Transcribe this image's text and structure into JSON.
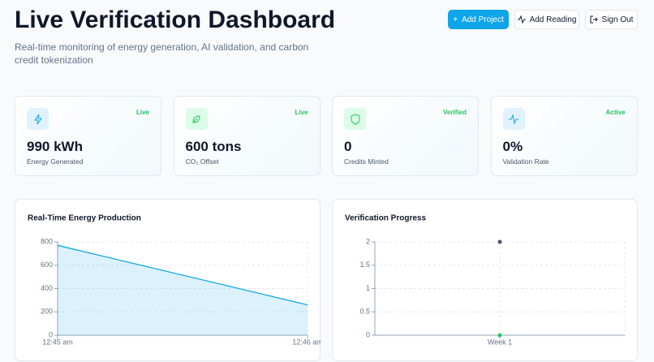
{
  "header": {
    "title": "Live Verification Dashboard",
    "subtitle": "Real-time monitoring of energy generation, AI validation, and carbon credit tokenization",
    "buttons": [
      "Add Project",
      "Add Reading",
      "Sign Out"
    ]
  },
  "cards": [
    {
      "badge": "Live",
      "value": "990 kWh",
      "label": "Energy Generated"
    },
    {
      "badge": "Live",
      "value": "600 tons",
      "label": "CO₂ Offset"
    },
    {
      "badge": "Verified",
      "value": "0",
      "label": "Credits Minted"
    },
    {
      "badge": "Active",
      "value": "0%",
      "label": "Validation Rate"
    }
  ],
  "chart_data": [
    {
      "type": "area",
      "title": "Real-Time Energy Production",
      "categories": [
        "12:45 am",
        "12:46 am"
      ],
      "values": [
        770,
        260
      ],
      "color": "#0ea5e9",
      "ylim": [
        0,
        800
      ],
      "yticks": [
        0,
        200,
        400,
        600,
        800
      ],
      "grid": true
    },
    {
      "type": "dots",
      "title": "Verification Progress",
      "categories": [
        "Week 1"
      ],
      "series": [
        {
          "color": "#475569",
          "values": [
            2
          ]
        },
        {
          "color": "#22c55e",
          "values": [
            0
          ]
        }
      ],
      "ylim": [
        0,
        2
      ],
      "yticks": [
        0,
        0.5,
        1,
        1.5,
        2
      ],
      "grid": true
    }
  ]
}
